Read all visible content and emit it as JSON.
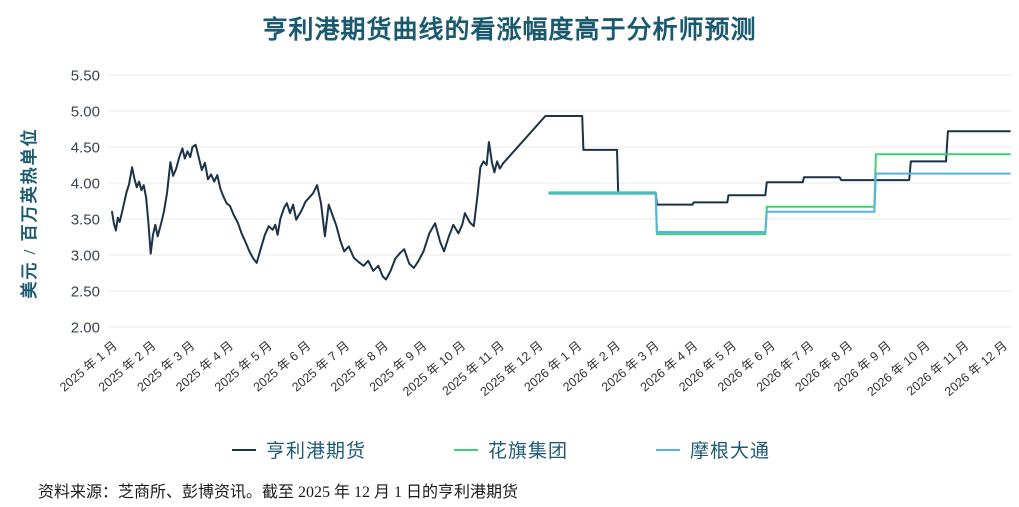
{
  "chart_data": {
    "type": "line",
    "title": "亨利港期货曲线的看涨幅度高于分析师预测",
    "ylabel": "美元 / 百万英热单位",
    "source_note": "资料来源：芝商所、彭博资讯。截至 2025 年 12 月 1 日的亨利港期货",
    "legend_position": "bottom",
    "grid": "horizontal",
    "y_axis": {
      "min": 2.0,
      "max": 5.5,
      "ticks": [
        "5.50",
        "5.00",
        "4.50",
        "4.00",
        "3.50",
        "3.00",
        "2.50",
        "2.00"
      ]
    },
    "x_axis": {
      "labels": [
        "2025 年 1 月",
        "2025 年 2 月",
        "2025 年 3 月",
        "2025 年 4 月",
        "2025 年 5 月",
        "2025 年 6 月",
        "2025 年 7 月",
        "2025 年 8 月",
        "2025 年 9 月",
        "2025 年 10 月",
        "2025 年 11 月",
        "2025 年 12 月",
        "2026 年 1 月",
        "2026 年 2 月",
        "2026 年 3 月",
        "2026 年 4 月",
        "2026 年 5 月",
        "2026 年 6 月",
        "2026 年 7 月",
        "2026 年 8 月",
        "2026 年 9 月",
        "2026 年 10 月",
        "2026 年 11 月",
        "2026 年 12 月"
      ]
    },
    "series": [
      {
        "id": "henry-hub-futures",
        "name": "亨利港期货",
        "color": "#1d3147",
        "points": [
          [
            0.0,
            3.6
          ],
          [
            0.05,
            3.44
          ],
          [
            0.1,
            3.34
          ],
          [
            0.15,
            3.52
          ],
          [
            0.2,
            3.46
          ],
          [
            0.26,
            3.6
          ],
          [
            0.32,
            3.74
          ],
          [
            0.38,
            3.88
          ],
          [
            0.44,
            3.98
          ],
          [
            0.52,
            4.22
          ],
          [
            0.58,
            4.06
          ],
          [
            0.64,
            3.94
          ],
          [
            0.7,
            4.02
          ],
          [
            0.76,
            3.9
          ],
          [
            0.82,
            3.97
          ],
          [
            0.88,
            3.8
          ],
          [
            0.94,
            3.45
          ],
          [
            1.0,
            3.02
          ],
          [
            1.06,
            3.28
          ],
          [
            1.12,
            3.42
          ],
          [
            1.18,
            3.26
          ],
          [
            1.26,
            3.42
          ],
          [
            1.34,
            3.6
          ],
          [
            1.42,
            3.86
          ],
          [
            1.51,
            4.29
          ],
          [
            1.58,
            4.1
          ],
          [
            1.66,
            4.2
          ],
          [
            1.74,
            4.36
          ],
          [
            1.82,
            4.48
          ],
          [
            1.88,
            4.34
          ],
          [
            1.95,
            4.44
          ],
          [
            2.02,
            4.36
          ],
          [
            2.08,
            4.5
          ],
          [
            2.16,
            4.53
          ],
          [
            2.24,
            4.36
          ],
          [
            2.32,
            4.18
          ],
          [
            2.4,
            4.28
          ],
          [
            2.48,
            4.05
          ],
          [
            2.56,
            4.12
          ],
          [
            2.64,
            4.02
          ],
          [
            2.72,
            4.11
          ],
          [
            2.8,
            3.92
          ],
          [
            2.88,
            3.81
          ],
          [
            2.96,
            3.72
          ],
          [
            3.05,
            3.68
          ],
          [
            3.15,
            3.55
          ],
          [
            3.25,
            3.45
          ],
          [
            3.35,
            3.3
          ],
          [
            3.45,
            3.18
          ],
          [
            3.55,
            3.05
          ],
          [
            3.65,
            2.95
          ],
          [
            3.74,
            2.89
          ],
          [
            3.85,
            3.1
          ],
          [
            3.95,
            3.28
          ],
          [
            4.05,
            3.4
          ],
          [
            4.15,
            3.35
          ],
          [
            4.22,
            3.42
          ],
          [
            4.28,
            3.28
          ],
          [
            4.35,
            3.5
          ],
          [
            4.45,
            3.66
          ],
          [
            4.52,
            3.72
          ],
          [
            4.6,
            3.58
          ],
          [
            4.68,
            3.7
          ],
          [
            4.76,
            3.49
          ],
          [
            4.9,
            3.62
          ],
          [
            5.0,
            3.74
          ],
          [
            5.1,
            3.8
          ],
          [
            5.2,
            3.86
          ],
          [
            5.3,
            3.97
          ],
          [
            5.4,
            3.72
          ],
          [
            5.5,
            3.26
          ],
          [
            5.6,
            3.7
          ],
          [
            5.7,
            3.55
          ],
          [
            5.8,
            3.4
          ],
          [
            5.9,
            3.2
          ],
          [
            6.0,
            3.05
          ],
          [
            6.12,
            3.12
          ],
          [
            6.25,
            2.96
          ],
          [
            6.38,
            2.9
          ],
          [
            6.5,
            2.85
          ],
          [
            6.62,
            2.92
          ],
          [
            6.75,
            2.78
          ],
          [
            6.88,
            2.85
          ],
          [
            7.0,
            2.7
          ],
          [
            7.08,
            2.66
          ],
          [
            7.2,
            2.78
          ],
          [
            7.32,
            2.95
          ],
          [
            7.45,
            3.03
          ],
          [
            7.55,
            3.08
          ],
          [
            7.68,
            2.88
          ],
          [
            7.8,
            2.82
          ],
          [
            7.92,
            2.92
          ],
          [
            8.05,
            3.05
          ],
          [
            8.2,
            3.3
          ],
          [
            8.35,
            3.44
          ],
          [
            8.48,
            3.18
          ],
          [
            8.58,
            3.05
          ],
          [
            8.7,
            3.25
          ],
          [
            8.82,
            3.42
          ],
          [
            8.95,
            3.3
          ],
          [
            9.05,
            3.42
          ],
          [
            9.12,
            3.58
          ],
          [
            9.25,
            3.45
          ],
          [
            9.35,
            3.4
          ],
          [
            9.45,
            3.85
          ],
          [
            9.52,
            4.22
          ],
          [
            9.6,
            4.3
          ],
          [
            9.68,
            4.25
          ],
          [
            9.74,
            4.57
          ],
          [
            9.82,
            4.28
          ],
          [
            9.88,
            4.15
          ],
          [
            9.95,
            4.3
          ],
          [
            10.02,
            4.2
          ],
          [
            10.1,
            4.27
          ],
          [
            11.2,
            4.93
          ],
          [
            12.15,
            4.93
          ],
          [
            12.18,
            4.46
          ],
          [
            13.05,
            4.46
          ],
          [
            13.08,
            3.86
          ],
          [
            14.05,
            3.86
          ],
          [
            14.08,
            3.7
          ],
          [
            15.0,
            3.7
          ],
          [
            15.03,
            3.73
          ],
          [
            15.9,
            3.73
          ],
          [
            15.93,
            3.83
          ],
          [
            16.88,
            3.83
          ],
          [
            16.92,
            4.01
          ],
          [
            17.85,
            4.01
          ],
          [
            17.88,
            4.08
          ],
          [
            18.8,
            4.08
          ],
          [
            18.84,
            4.04
          ],
          [
            20.6,
            4.04
          ],
          [
            20.64,
            4.3
          ],
          [
            21.55,
            4.3
          ],
          [
            21.6,
            4.72
          ],
          [
            23.2,
            4.72
          ]
        ]
      },
      {
        "id": "citigroup",
        "name": "花旗集团",
        "color": "#3ccf74",
        "points": [
          [
            11.3,
            3.87
          ],
          [
            14.05,
            3.87
          ],
          [
            14.08,
            3.29
          ],
          [
            16.88,
            3.29
          ],
          [
            16.92,
            3.67
          ],
          [
            19.7,
            3.67
          ],
          [
            19.74,
            4.4
          ],
          [
            23.2,
            4.4
          ]
        ]
      },
      {
        "id": "jpmorgan",
        "name": "摩根大通",
        "color": "#55b3e0",
        "points": [
          [
            11.3,
            3.85
          ],
          [
            14.05,
            3.85
          ],
          [
            14.08,
            3.32
          ],
          [
            16.88,
            3.32
          ],
          [
            16.92,
            3.6
          ],
          [
            19.7,
            3.6
          ],
          [
            19.74,
            4.13
          ],
          [
            23.2,
            4.13
          ]
        ]
      }
    ]
  }
}
